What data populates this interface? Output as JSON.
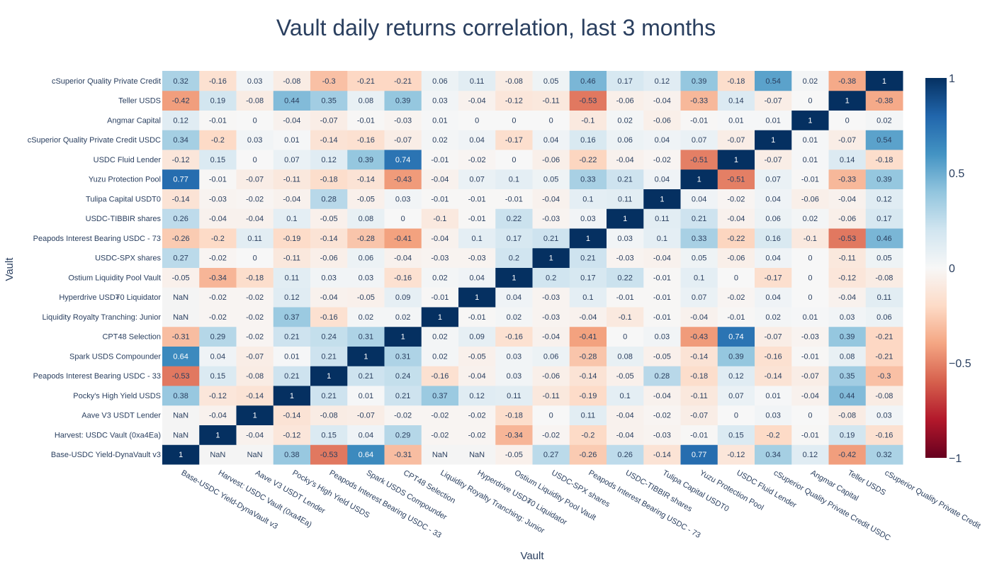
{
  "chart_data": {
    "type": "heatmap",
    "title": "Vault daily returns correlation, last 3 months",
    "xlabel": "Vault",
    "ylabel": "Vault",
    "zlim": [
      -1,
      1
    ],
    "colorbar_ticks": [
      {
        "value": 1,
        "label": "1"
      },
      {
        "value": 0.5,
        "label": "0.5"
      },
      {
        "value": 0,
        "label": "0"
      },
      {
        "value": -0.5,
        "label": "−0.5"
      },
      {
        "value": -1,
        "label": "−1"
      }
    ],
    "labels": [
      "Base-USDC Yield-DynaVault v3",
      "Harvest: USDC Vault (0xa4Ea)",
      "Aave V3 USDT Lender",
      "Pocky's High Yield USDS",
      "Peapods Interest Bearing USDC - 33",
      "Spark USDS Compounder",
      "CPT48 Selection",
      "Liquidity Royalty Tranching: Junior",
      "Hyperdrive USD₮0 Liquidator",
      "Ostium Liquidity Pool Vault",
      "USDC-SPX shares",
      "Peapods Interest Bearing USDC - 73",
      "USDC-TIBBIR shares",
      "Tulipa Capital USDT0",
      "Yuzu Protection Pool",
      "USDC Fluid Lender",
      "cSuperior Quality Private Credit USDC",
      "Angmar Capital",
      "Teller USDS",
      "cSuperior Quality Private Credit"
    ],
    "z": [
      [
        1,
        null,
        null,
        0.38,
        -0.53,
        0.64,
        -0.31,
        null,
        null,
        -0.05,
        0.27,
        -0.26,
        0.26,
        -0.14,
        0.77,
        -0.12,
        0.34,
        0.12,
        -0.42,
        0.32
      ],
      [
        null,
        1,
        -0.04,
        -0.12,
        0.15,
        0.04,
        0.29,
        -0.02,
        -0.02,
        -0.34,
        -0.02,
        -0.2,
        -0.04,
        -0.03,
        -0.01,
        0.15,
        -0.2,
        -0.01,
        0.19,
        -0.16
      ],
      [
        null,
        -0.04,
        1,
        -0.14,
        -0.08,
        -0.07,
        -0.02,
        -0.02,
        -0.02,
        -0.18,
        0,
        0.11,
        -0.04,
        -0.02,
        -0.07,
        0,
        0.03,
        0,
        -0.08,
        0.03
      ],
      [
        0.38,
        -0.12,
        -0.14,
        1,
        0.21,
        0.01,
        0.21,
        0.37,
        0.12,
        0.11,
        -0.11,
        -0.19,
        0.1,
        -0.04,
        -0.11,
        0.07,
        0.01,
        -0.04,
        0.44,
        -0.08
      ],
      [
        -0.53,
        0.15,
        -0.08,
        0.21,
        1,
        0.21,
        0.24,
        -0.16,
        -0.04,
        0.03,
        -0.06,
        -0.14,
        -0.05,
        0.28,
        -0.18,
        0.12,
        -0.14,
        -0.07,
        0.35,
        -0.3
      ],
      [
        0.64,
        0.04,
        -0.07,
        0.01,
        0.21,
        1,
        0.31,
        0.02,
        -0.05,
        0.03,
        0.06,
        -0.28,
        0.08,
        -0.05,
        -0.14,
        0.39,
        -0.16,
        -0.01,
        0.08,
        -0.21
      ],
      [
        -0.31,
        0.29,
        -0.02,
        0.21,
        0.24,
        0.31,
        1,
        0.02,
        0.09,
        -0.16,
        -0.04,
        -0.41,
        0,
        0.03,
        -0.43,
        0.74,
        -0.07,
        -0.03,
        0.39,
        -0.21
      ],
      [
        null,
        -0.02,
        -0.02,
        0.37,
        -0.16,
        0.02,
        0.02,
        1,
        -0.01,
        0.02,
        -0.03,
        -0.04,
        -0.1,
        -0.01,
        -0.04,
        -0.01,
        0.02,
        0.01,
        0.03,
        0.06
      ],
      [
        null,
        -0.02,
        -0.02,
        0.12,
        -0.04,
        -0.05,
        0.09,
        -0.01,
        1,
        0.04,
        -0.03,
        0.1,
        -0.01,
        -0.01,
        0.07,
        -0.02,
        0.04,
        0,
        -0.04,
        0.11
      ],
      [
        -0.05,
        -0.34,
        -0.18,
        0.11,
        0.03,
        0.03,
        -0.16,
        0.02,
        0.04,
        1,
        0.2,
        0.17,
        0.22,
        -0.01,
        0.1,
        0,
        -0.17,
        0,
        -0.12,
        -0.08
      ],
      [
        0.27,
        -0.02,
        0,
        -0.11,
        -0.06,
        0.06,
        -0.04,
        -0.03,
        -0.03,
        0.2,
        1,
        0.21,
        -0.03,
        -0.04,
        0.05,
        -0.06,
        0.04,
        0,
        -0.11,
        0.05
      ],
      [
        -0.26,
        -0.2,
        0.11,
        -0.19,
        -0.14,
        -0.28,
        -0.41,
        -0.04,
        0.1,
        0.17,
        0.21,
        1,
        0.03,
        0.1,
        0.33,
        -0.22,
        0.16,
        -0.1,
        -0.53,
        0.46
      ],
      [
        0.26,
        -0.04,
        -0.04,
        0.1,
        -0.05,
        0.08,
        0,
        -0.1,
        -0.01,
        0.22,
        -0.03,
        0.03,
        1,
        0.11,
        0.21,
        -0.04,
        0.06,
        0.02,
        -0.06,
        0.17
      ],
      [
        -0.14,
        -0.03,
        -0.02,
        -0.04,
        0.28,
        -0.05,
        0.03,
        -0.01,
        -0.01,
        -0.01,
        -0.04,
        0.1,
        0.11,
        1,
        0.04,
        -0.02,
        0.04,
        -0.06,
        -0.04,
        0.12
      ],
      [
        0.77,
        -0.01,
        -0.07,
        -0.11,
        -0.18,
        -0.14,
        -0.43,
        -0.04,
        0.07,
        0.1,
        0.05,
        0.33,
        0.21,
        0.04,
        1,
        -0.51,
        0.07,
        -0.01,
        -0.33,
        0.39
      ],
      [
        -0.12,
        0.15,
        0,
        0.07,
        0.12,
        0.39,
        0.74,
        -0.01,
        -0.02,
        0,
        -0.06,
        -0.22,
        -0.04,
        -0.02,
        -0.51,
        1,
        -0.07,
        0.01,
        0.14,
        -0.18
      ],
      [
        0.34,
        -0.2,
        0.03,
        0.01,
        -0.14,
        -0.16,
        -0.07,
        0.02,
        0.04,
        -0.17,
        0.04,
        0.16,
        0.06,
        0.04,
        0.07,
        -0.07,
        1,
        0.01,
        -0.07,
        0.54
      ],
      [
        0.12,
        -0.01,
        0,
        -0.04,
        -0.07,
        -0.01,
        -0.03,
        0.01,
        0,
        0,
        0,
        -0.1,
        0.02,
        -0.06,
        -0.01,
        0.01,
        0.01,
        1,
        0,
        0.02
      ],
      [
        -0.42,
        0.19,
        -0.08,
        0.44,
        0.35,
        0.08,
        0.39,
        0.03,
        -0.04,
        -0.12,
        -0.11,
        -0.53,
        -0.06,
        -0.04,
        -0.33,
        0.14,
        -0.07,
        0,
        1,
        -0.38
      ],
      [
        0.32,
        -0.16,
        0.03,
        -0.08,
        -0.3,
        -0.21,
        -0.21,
        0.06,
        0.11,
        -0.08,
        0.05,
        0.46,
        0.17,
        0.12,
        0.39,
        -0.18,
        0.54,
        0.02,
        -0.38,
        1
      ]
    ],
    "nan_label": "NaN",
    "colorscale": [
      "#67001f",
      "#b2182b",
      "#d6604d",
      "#f4a582",
      "#fddbc7",
      "#f7f7f7",
      "#d1e5f0",
      "#92c5de",
      "#4393c3",
      "#2166ac",
      "#053061"
    ]
  }
}
